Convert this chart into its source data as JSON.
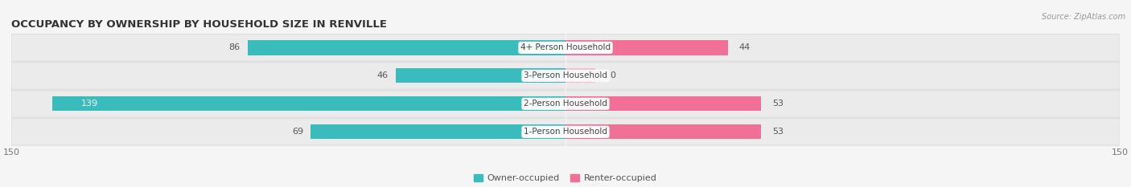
{
  "title": "OCCUPANCY BY OWNERSHIP BY HOUSEHOLD SIZE IN RENVILLE",
  "source": "Source: ZipAtlas.com",
  "categories": [
    "1-Person Household",
    "2-Person Household",
    "3-Person Household",
    "4+ Person Household"
  ],
  "owner_values": [
    69,
    139,
    46,
    86
  ],
  "renter_values": [
    53,
    53,
    0,
    44
  ],
  "max_axis": 150,
  "owner_color": "#3BBCBC",
  "renter_color": "#F07098",
  "renter_color_light": "#F5B8CC",
  "bg_color": "#f5f5f5",
  "row_bg_color": "#ebebeb",
  "row_bg_edge": "#dddddd",
  "title_fontsize": 9.5,
  "source_fontsize": 7,
  "bar_height": 0.52,
  "value_fontsize": 8,
  "cat_fontsize": 7.5,
  "legend_fontsize": 8,
  "tick_fontsize": 8
}
